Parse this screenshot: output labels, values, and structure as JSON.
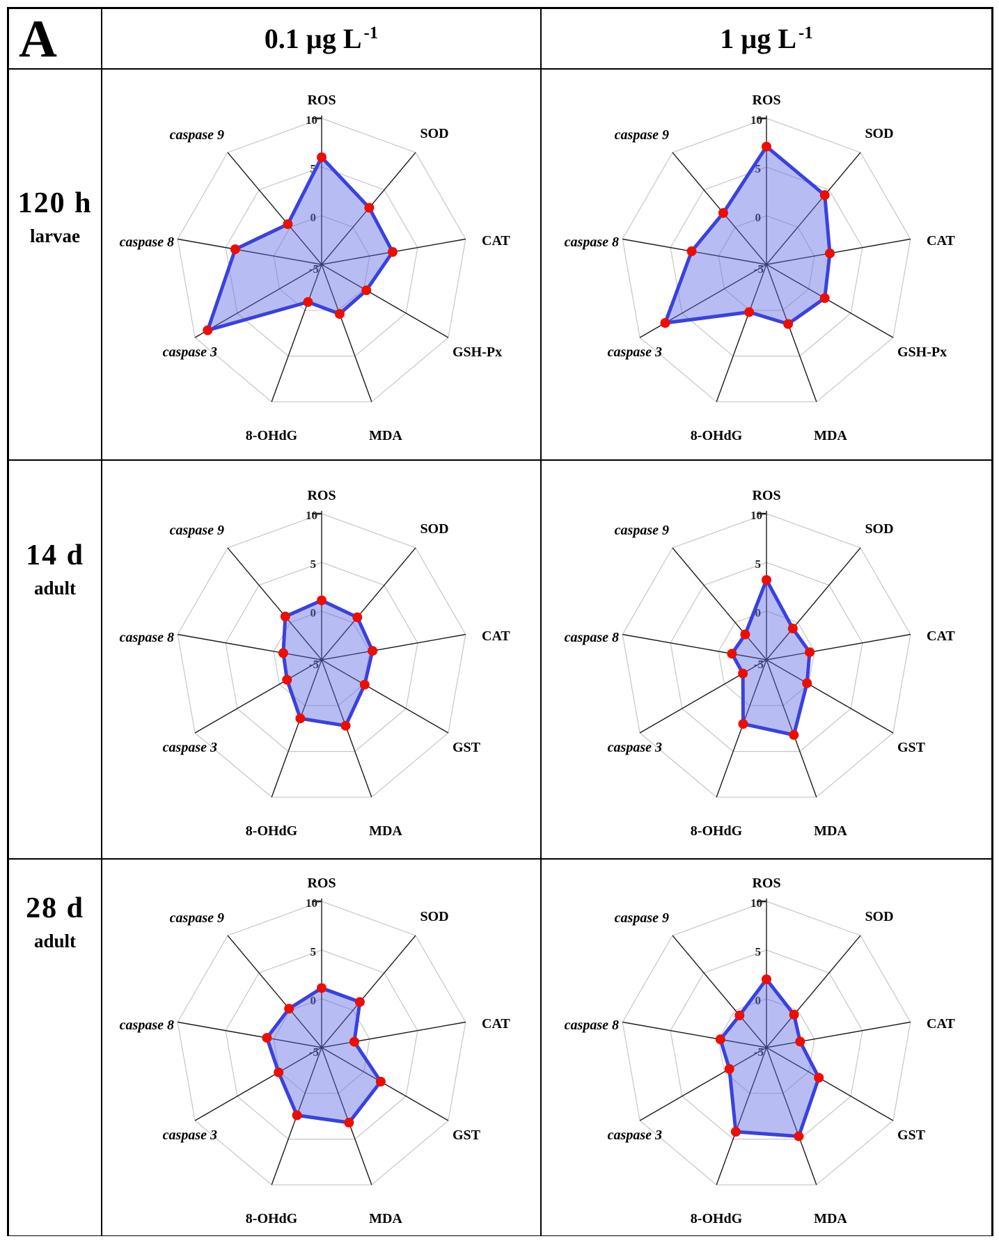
{
  "panel_label": "A",
  "header": {
    "columns": [
      {
        "dose": "0.1 µg L",
        "exponent": "-1"
      },
      {
        "dose": "1 µg L",
        "exponent": "-1"
      }
    ]
  },
  "rows": [
    {
      "time": "120 h",
      "stage": "larvae"
    },
    {
      "time": "14 d",
      "stage": "adult"
    },
    {
      "time": "28 d",
      "stage": "adult"
    }
  ],
  "radar": {
    "tick_labels": [
      "10",
      "5",
      "0",
      "-5"
    ],
    "scale_min": -5,
    "scale_max": 10,
    "ring_step": 5,
    "n_axes": 9
  },
  "colors": {
    "polygon_stroke": "#3a41dd",
    "polygon_fill": "rgba(95,108,228,0.45)",
    "point": "#ee0d00",
    "grid_ring": "#c6c6c6",
    "spoke": "#1a1a1a",
    "tick_text": "#222222",
    "label_text": "#000000"
  },
  "chart_data": [
    {
      "type": "radar",
      "row": "120 h larvae",
      "dose": "0.1 µg L-1",
      "axes": [
        "ROS",
        "SOD",
        "CAT",
        "GSH-Px",
        "MDA",
        "8-OHdG",
        "caspase 3",
        "caspase 8",
        "caspase 9"
      ],
      "values": [
        6.0,
        2.6,
        2.4,
        0.3,
        0.4,
        -0.9,
        8.5,
        4.0,
        0.4
      ],
      "range": [
        -5,
        10
      ],
      "grid": true
    },
    {
      "type": "radar",
      "row": "120 h larvae",
      "dose": "1 µg L-1",
      "axes": [
        "ROS",
        "SOD",
        "CAT",
        "GSH-Px",
        "MDA",
        "8-OHdG",
        "caspase 3",
        "caspase 8",
        "caspase 9"
      ],
      "values": [
        7.1,
        4.3,
        1.6,
        1.9,
        1.5,
        0.2,
        7.0,
        2.8,
        1.9
      ],
      "range": [
        -5,
        10
      ],
      "grid": true
    },
    {
      "type": "radar",
      "row": "14 d adult",
      "dose": "0.1 µg L-1",
      "axes": [
        "ROS",
        "SOD",
        "CAT",
        "GST",
        "MDA",
        "8-OHdG",
        "caspase 3",
        "caspase 8",
        "caspase 9"
      ],
      "values": [
        1.1,
        0.7,
        0.3,
        0.1,
        2.2,
        1.4,
        -0.9,
        -1.0,
        0.8
      ],
      "range": [
        -5,
        10
      ],
      "grid": true
    },
    {
      "type": "radar",
      "row": "14 d adult",
      "dose": "1 µg L-1",
      "axes": [
        "ROS",
        "SOD",
        "CAT",
        "GST",
        "MDA",
        "8-OHdG",
        "caspase 3",
        "caspase 8",
        "caspase 9"
      ],
      "values": [
        3.2,
        -0.8,
        -0.5,
        -0.2,
        3.2,
        2.0,
        -2.2,
        -1.4,
        -1.6
      ],
      "range": [
        -5,
        10
      ],
      "grid": true
    },
    {
      "type": "radar",
      "row": "28 d adult",
      "dose": "0.1 µg L-1",
      "axes": [
        "ROS",
        "SOD",
        "CAT",
        "GST",
        "MDA",
        "8-OHdG",
        "caspase 3",
        "caspase 8",
        "caspase 9"
      ],
      "values": [
        1.1,
        1.1,
        -1.6,
        2.0,
        3.2,
        2.4,
        0.1,
        0.7,
        0.2
      ],
      "range": [
        -5,
        10
      ],
      "grid": true
    },
    {
      "type": "radar",
      "row": "28 d adult",
      "dose": "1 µg L-1",
      "axes": [
        "ROS",
        "SOD",
        "CAT",
        "GST",
        "MDA",
        "8-OHdG",
        "caspase 3",
        "caspase 8",
        "caspase 9"
      ],
      "values": [
        2.0,
        -0.6,
        -1.5,
        1.2,
        4.7,
        4.2,
        -0.6,
        -0.2,
        -0.7
      ],
      "range": [
        -5,
        10
      ],
      "grid": true
    }
  ]
}
